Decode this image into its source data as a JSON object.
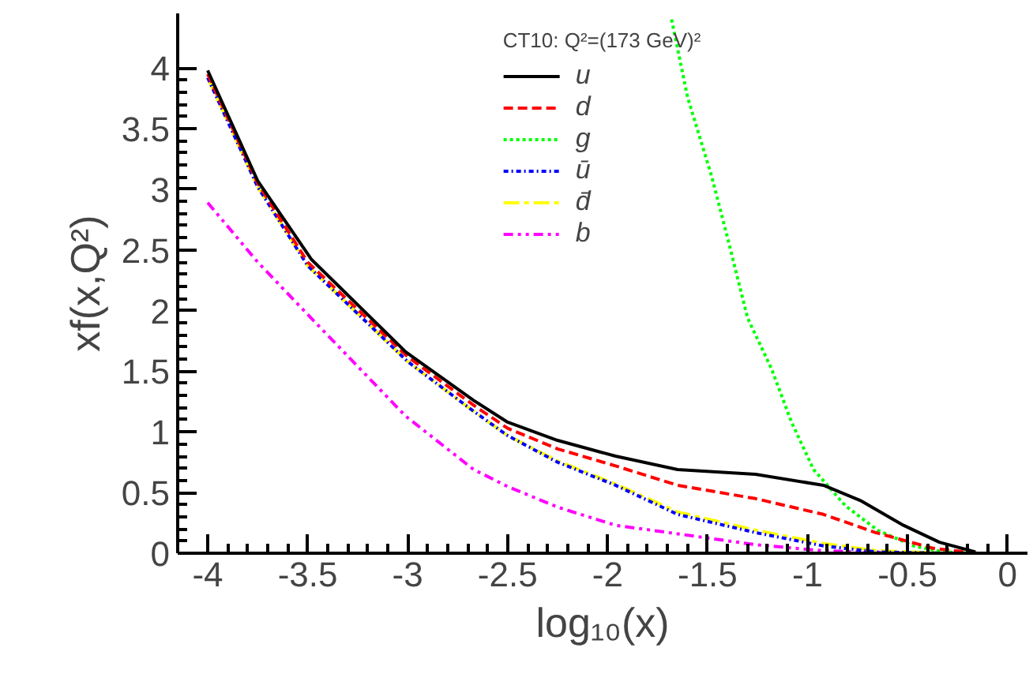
{
  "chart_data": {
    "type": "line",
    "xlabel": "log₁₀(x)",
    "ylabel": "xf(x,Q²)",
    "legend_title": "CT10: Q²=(173 GeV)²",
    "xlim": [
      -4.15,
      0.1
    ],
    "ylim": [
      0,
      4.45
    ],
    "xticks": [
      -4,
      -3.5,
      -3,
      -2.5,
      -2,
      -1.5,
      -1,
      -0.5,
      0
    ],
    "yticks": [
      0,
      0.5,
      1,
      1.5,
      2,
      2.5,
      3,
      3.5,
      4
    ],
    "grid": false,
    "legend": "top",
    "series": [
      {
        "name": "u",
        "color": "#000000",
        "line_style": "solid",
        "x": [
          -4,
          -3.75,
          -3.48,
          -3.01,
          -2.67,
          -2.5,
          -2.25,
          -1.96,
          -1.65,
          -1.26,
          -0.92,
          -0.73,
          -0.52,
          -0.34,
          -0.16
        ],
        "values": [
          3.98,
          3.07,
          2.42,
          1.66,
          1.26,
          1.08,
          0.93,
          0.8,
          0.69,
          0.65,
          0.56,
          0.43,
          0.23,
          0.09,
          0.01
        ]
      },
      {
        "name": "d",
        "color": "#ff0000",
        "line_style": "dashed",
        "x": [
          -4,
          -3.75,
          -3.5,
          -3,
          -2.67,
          -2.5,
          -2.25,
          -1.96,
          -1.65,
          -1.26,
          -0.92,
          -0.66,
          -0.37,
          -0.15
        ],
        "values": [
          3.95,
          3.05,
          2.4,
          1.62,
          1.22,
          1.03,
          0.86,
          0.72,
          0.56,
          0.45,
          0.32,
          0.17,
          0.04,
          0
        ]
      },
      {
        "name": "g",
        "color": "#00ff00",
        "line_style": "dotted",
        "x": [
          -1.68,
          -1.6,
          -1.48,
          -1.4,
          -1.3,
          -1.18,
          -1.08,
          -0.97,
          -0.81,
          -0.65,
          -0.47,
          -0.32,
          -0.15
        ],
        "values": [
          4.4,
          3.76,
          3.11,
          2.6,
          1.94,
          1.52,
          1.08,
          0.69,
          0.39,
          0.19,
          0.06,
          0.01,
          0
        ]
      },
      {
        "name": "ū",
        "color": "#0000ff",
        "line_style": "dashdot",
        "x": [
          -4,
          -3.75,
          -3.5,
          -3,
          -2.67,
          -2.5,
          -2.25,
          -1.96,
          -1.65,
          -1.26,
          -0.92,
          -0.65,
          -0.3
        ],
        "values": [
          3.92,
          3.02,
          2.37,
          1.58,
          1.17,
          0.97,
          0.75,
          0.56,
          0.32,
          0.17,
          0.06,
          0.01,
          0
        ]
      },
      {
        "name": "d̄",
        "color": "#ffff00",
        "line_style": "longdashdot",
        "x": [
          -4,
          -3.75,
          -3.5,
          -3,
          -2.67,
          -2.5,
          -2.25,
          -1.96,
          -1.65,
          -1.26,
          -0.92,
          -0.65,
          -0.3
        ],
        "values": [
          3.92,
          3.02,
          2.37,
          1.58,
          1.17,
          0.97,
          0.76,
          0.57,
          0.34,
          0.19,
          0.08,
          0.02,
          0
        ]
      },
      {
        "name": "b",
        "color": "#ff00ff",
        "line_style": "dashdotdot",
        "x": [
          -4,
          -3.75,
          -3.46,
          -3.01,
          -2.67,
          -2.5,
          -2.25,
          -1.96,
          -1.65,
          -1.26,
          -0.92,
          -0.5
        ],
        "values": [
          2.89,
          2.4,
          1.9,
          1.13,
          0.69,
          0.55,
          0.38,
          0.23,
          0.16,
          0.07,
          0.02,
          0
        ]
      }
    ]
  }
}
